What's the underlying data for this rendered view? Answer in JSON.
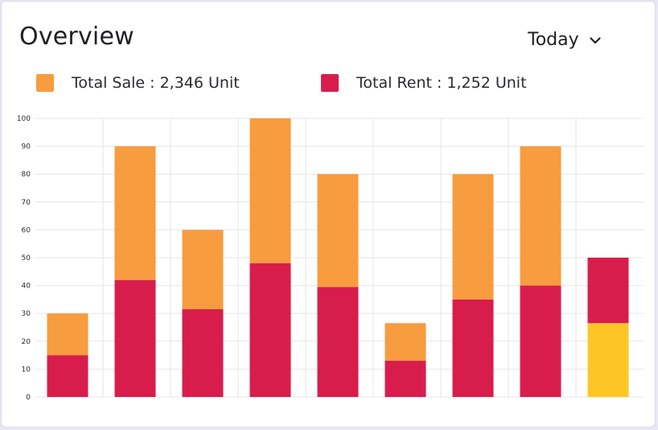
{
  "header": {
    "title": "Overview",
    "range_label": "Today",
    "chevron_icon": "chevron-down-icon"
  },
  "legend": [
    {
      "label": "Total Sale : 2,346 Unit",
      "color": "#f79c3f"
    },
    {
      "label": "Total Rent : 1,252 Unit",
      "color": "#d81d4c"
    }
  ],
  "colors": {
    "sale": "#f79c3f",
    "rent": "#d81d4c",
    "highlight": "#fcc726",
    "grid": "#e6e6e6"
  },
  "chart_data": {
    "type": "bar",
    "stacked": true,
    "categories": [
      "",
      "",
      "",
      "",
      "",
      "",
      "",
      "",
      ""
    ],
    "ylim": [
      0,
      100
    ],
    "yticks": [
      0,
      10,
      20,
      30,
      40,
      50,
      60,
      70,
      80,
      90,
      100
    ],
    "series": [
      {
        "name": "Total Rent",
        "values": [
          15,
          42,
          31.5,
          48,
          39.5,
          13,
          35,
          40,
          50
        ]
      },
      {
        "name": "Total Sale",
        "values": [
          15,
          48,
          28.5,
          52,
          40.5,
          13.5,
          45,
          50,
          0
        ]
      }
    ],
    "highlight": {
      "index": 8,
      "value": 26.5
    },
    "grid": true,
    "legend_position": "top"
  }
}
